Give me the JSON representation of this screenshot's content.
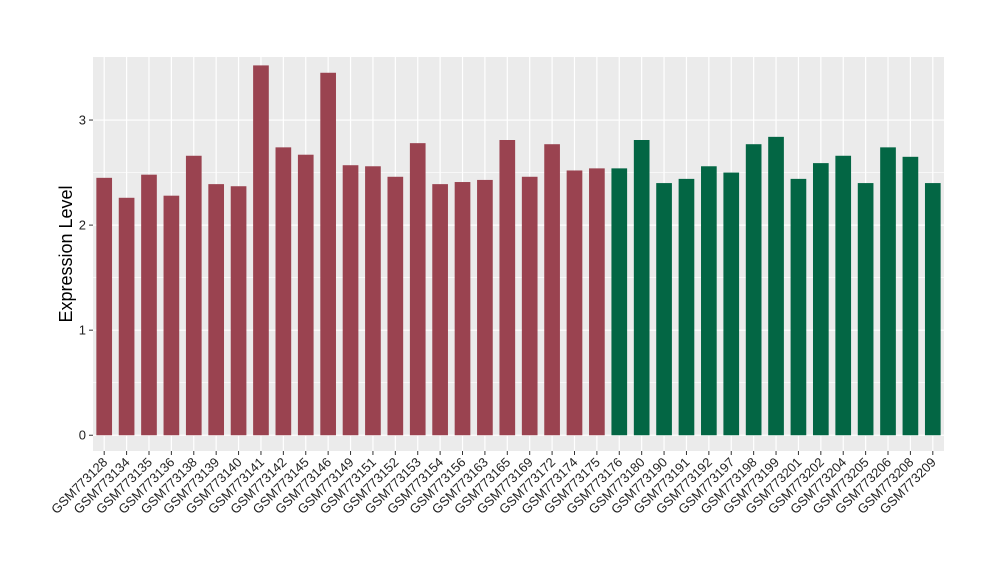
{
  "chart_data": {
    "type": "bar",
    "ylabel": "Expression Level",
    "xlabel": "",
    "ylim": [
      -0.15,
      3.6
    ],
    "yticks": [
      0,
      1,
      2,
      3
    ],
    "ytick_labels": [
      "0",
      "1",
      "2",
      "3"
    ],
    "grid": true,
    "colors": {
      "group1": "#9a4350",
      "group2": "#036644",
      "panel": "#ebebeb",
      "grid": "#ffffff"
    },
    "categories": [
      "GSM773128",
      "GSM773134",
      "GSM773135",
      "GSM773136",
      "GSM773138",
      "GSM773139",
      "GSM773140",
      "GSM773141",
      "GSM773142",
      "GSM773145",
      "GSM773146",
      "GSM773149",
      "GSM773151",
      "GSM773152",
      "GSM773153",
      "GSM773154",
      "GSM773156",
      "GSM773163",
      "GSM773165",
      "GSM773169",
      "GSM773172",
      "GSM773174",
      "GSM773175",
      "GSM773176",
      "GSM773180",
      "GSM773190",
      "GSM773191",
      "GSM773192",
      "GSM773197",
      "GSM773198",
      "GSM773199",
      "GSM773201",
      "GSM773202",
      "GSM773204",
      "GSM773205",
      "GSM773206",
      "GSM773208",
      "GSM773209"
    ],
    "values": [
      2.45,
      2.26,
      2.48,
      2.28,
      2.66,
      2.39,
      2.37,
      3.52,
      2.74,
      2.67,
      3.45,
      2.57,
      2.56,
      2.46,
      2.78,
      2.39,
      2.41,
      2.43,
      2.81,
      2.46,
      2.77,
      2.52,
      2.54,
      2.54,
      2.81,
      2.4,
      2.44,
      2.56,
      2.5,
      2.77,
      2.84,
      2.44,
      2.59,
      2.66,
      2.4,
      2.74,
      2.65,
      2.4
    ],
    "groups": [
      "group1",
      "group1",
      "group1",
      "group1",
      "group1",
      "group1",
      "group1",
      "group1",
      "group1",
      "group1",
      "group1",
      "group1",
      "group1",
      "group1",
      "group1",
      "group1",
      "group1",
      "group1",
      "group1",
      "group1",
      "group1",
      "group1",
      "group1",
      "group2",
      "group2",
      "group2",
      "group2",
      "group2",
      "group2",
      "group2",
      "group2",
      "group2",
      "group2",
      "group2",
      "group2",
      "group2",
      "group2",
      "group2"
    ]
  }
}
